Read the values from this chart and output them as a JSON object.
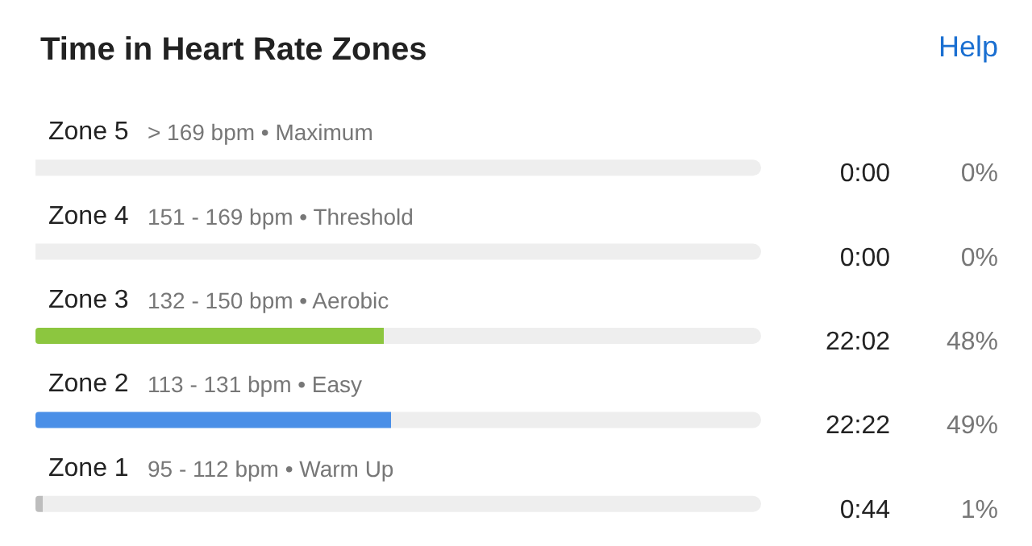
{
  "chart_data": {
    "type": "bar",
    "orientation": "horizontal",
    "stacked": true,
    "title": "Time in Heart Rate Zones",
    "categories": [
      "Zone 5",
      "Zone 4",
      "Zone 3",
      "Zone 2",
      "Zone 1"
    ],
    "series": [
      {
        "values": [
          0,
          0,
          48,
          49,
          1
        ],
        "colors": [
          "#bdbdbd",
          "#bdbdbd",
          "#8cc63f",
          "#4a8fe7",
          "#bdbdbd"
        ],
        "value_labels": [
          "0%",
          "0%",
          "48%",
          "49%",
          "1%"
        ]
      },
      {
        "values": [
          100,
          100,
          52,
          51,
          99
        ],
        "color": "#eeeeee"
      }
    ],
    "tick_labels": "y",
    "grid": false,
    "annotations": [
      "> 169 bpm • Maximum",
      "151 - 169 bpm • Threshold",
      "132 - 150 bpm • Aerobic",
      "113 - 131 bpm • Easy",
      "95 - 112 bpm • Warm Up",
      "0:00",
      "0:00",
      "22:02",
      "22:22",
      "0:44",
      "Help"
    ]
  }
}
